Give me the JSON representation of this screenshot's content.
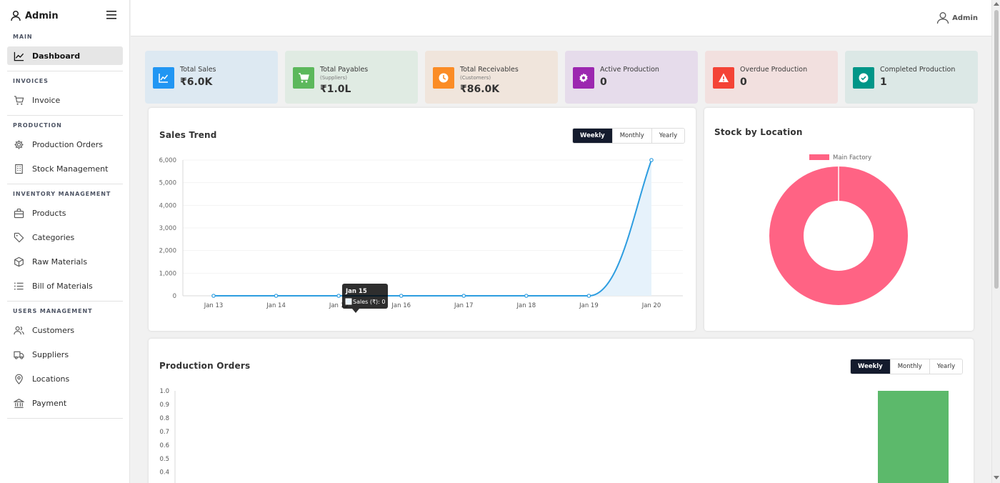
{
  "sidebar": {
    "brand": "Admin",
    "sections": {
      "main": "MAIN",
      "invoices": "INVOICES",
      "production": "PRODUCTION",
      "inventory": "INVENTORY MANAGEMENT",
      "users": "USERS MANAGEMENT"
    },
    "items": [
      {
        "label": "Dashboard",
        "icon": "chart-line-icon"
      },
      {
        "label": "Invoice",
        "icon": "cart-icon"
      },
      {
        "label": "Production Orders",
        "icon": "gear-icon"
      },
      {
        "label": "Stock Management",
        "icon": "building-icon"
      },
      {
        "label": "Products",
        "icon": "bag-icon"
      },
      {
        "label": "Categories",
        "icon": "tag-icon"
      },
      {
        "label": "Raw Materials",
        "icon": "box-icon"
      },
      {
        "label": "Bill of Materials",
        "icon": "list-icon"
      },
      {
        "label": "Customers",
        "icon": "users-icon"
      },
      {
        "label": "Suppliers",
        "icon": "truck-icon"
      },
      {
        "label": "Locations",
        "icon": "map-pin-icon"
      },
      {
        "label": "Payment",
        "icon": "bank-icon"
      }
    ]
  },
  "topbar": {
    "user": "Admin"
  },
  "stats": [
    {
      "title": "Total Sales",
      "sub": "",
      "value": "₹6.0K",
      "bg": "#dde9f2",
      "icon_bg": "#2196f3",
      "icon": "chart-line-icon"
    },
    {
      "title": "Total Payables",
      "sub": "(Suppliers)",
      "value": "₹1.0L",
      "bg": "#e0ebe3",
      "icon_bg": "#5cb85c",
      "icon": "cart-icon"
    },
    {
      "title": "Total Receivables",
      "sub": "(Customers)",
      "value": "₹86.0K",
      "bg": "#f0e5dc",
      "icon_bg": "#fb8c26",
      "icon": "clock-icon"
    },
    {
      "title": "Active Production",
      "sub": "",
      "value": "0",
      "bg": "#e6dceb",
      "icon_bg": "#9c27b0",
      "icon": "cog-icon"
    },
    {
      "title": "Overdue Production",
      "sub": "",
      "value": "0",
      "bg": "#f2e0df",
      "icon_bg": "#f44336",
      "icon": "warning-icon"
    },
    {
      "title": "Completed Production",
      "sub": "",
      "value": "1",
      "bg": "#dce8e6",
      "icon_bg": "#009688",
      "icon": "check-circle-icon"
    }
  ],
  "sales_trend": {
    "title": "Sales Trend",
    "periods": [
      "Weekly",
      "Monthly",
      "Yearly"
    ],
    "active_period": "Weekly",
    "tooltip": {
      "title": "Jan 15",
      "text": "Sales (₹): 0"
    }
  },
  "stock_by_location": {
    "title": "Stock by Location",
    "legend": "Main Factory"
  },
  "production_orders": {
    "title": "Production Orders",
    "periods": [
      "Weekly",
      "Monthly",
      "Yearly"
    ],
    "active_period": "Weekly"
  },
  "chart_data": [
    {
      "type": "area",
      "title": "Sales Trend",
      "x": [
        "Jan 13",
        "Jan 14",
        "Jan 15",
        "Jan 16",
        "Jan 17",
        "Jan 18",
        "Jan 19",
        "Jan 20"
      ],
      "series": [
        {
          "name": "Sales (₹)",
          "values": [
            0,
            0,
            0,
            0,
            0,
            0,
            0,
            6000
          ]
        }
      ],
      "yticks": [
        "0",
        "1,000",
        "2,000",
        "3,000",
        "4,000",
        "5,000",
        "6,000"
      ],
      "ylim": [
        0,
        6000
      ],
      "grid": true,
      "color": "#2d9de0",
      "fill": "#e6f2fb"
    },
    {
      "type": "pie",
      "title": "Stock by Location",
      "labels": [
        "Main Factory"
      ],
      "values": [
        1
      ],
      "colors": [
        "#ff6384"
      ],
      "donut": true,
      "legend": "top"
    },
    {
      "type": "bar",
      "title": "Production Orders",
      "categories": [
        ""
      ],
      "values": [
        1
      ],
      "yticks": [
        "1.0",
        "0.9",
        "0.8",
        "0.7",
        "0.6",
        "0.5",
        "0.4"
      ],
      "ylim": [
        0,
        1
      ],
      "color": "#5cb96b"
    }
  ]
}
